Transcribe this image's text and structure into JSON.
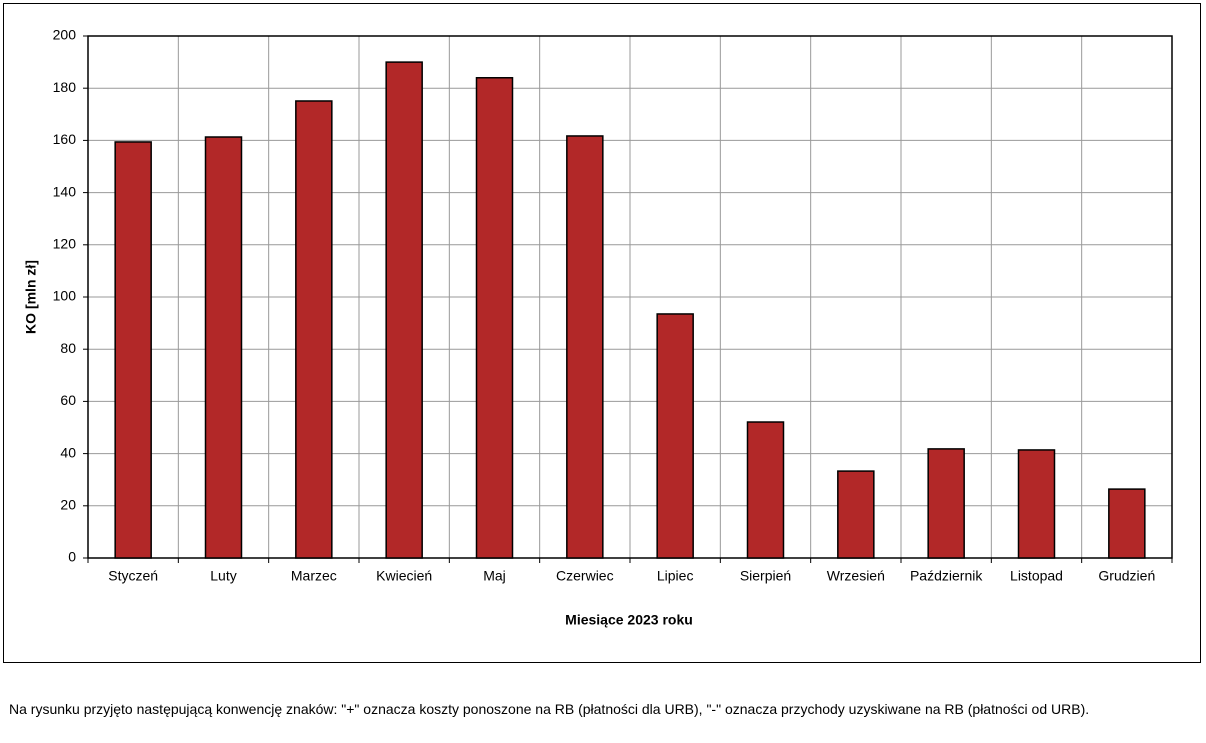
{
  "chart_data": {
    "type": "bar",
    "x_label": "Miesiące  2023 roku",
    "y_label": "KO [mln zł]",
    "categories": [
      "Styczeń",
      "Luty",
      "Marzec",
      "Kwiecień",
      "Maj",
      "Czerwiec",
      "Lipiec",
      "Sierpień",
      "Wrzesień",
      "Październik",
      "Listopad",
      "Grudzień"
    ],
    "values": [
      159.4,
      161.3,
      175.1,
      190,
      184,
      161.7,
      93.5,
      52.1,
      33.3,
      41.8,
      41.4,
      26.4
    ],
    "color": "#b22828",
    "ylim": [
      0,
      200
    ],
    "yticks": [
      0,
      20,
      40,
      60,
      80,
      100,
      120,
      140,
      160,
      180,
      200
    ],
    "grid": true
  },
  "caption": "Na rysunku przyjęto następującą konwencję znaków: \"+\" oznacza koszty ponoszone na RB (płatności dla URB), \"-\" oznacza przychody uzyskiwane na RB (płatności od URB)."
}
